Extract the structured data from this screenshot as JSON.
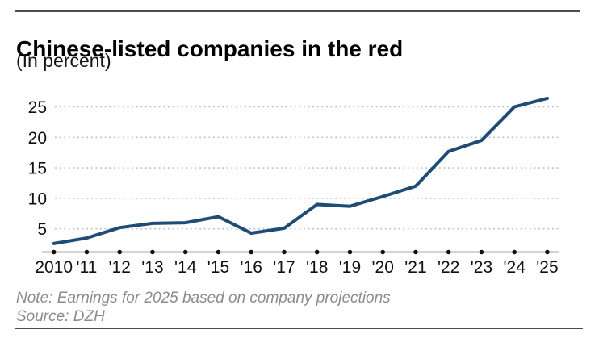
{
  "header": {
    "title": "Chinese-listed companies in the red",
    "subtitle": "(In percent)"
  },
  "chart_data": {
    "type": "line",
    "title": "Chinese-listed companies in the red",
    "ylabel": "(In percent)",
    "xlabel": "",
    "categories": [
      "2010",
      "'11",
      "'12",
      "'13",
      "'14",
      "'15",
      "'16",
      "'17",
      "'18",
      "'19",
      "'20",
      "'21",
      "'22",
      "'23",
      "'24",
      "'25"
    ],
    "values": [
      2.6,
      3.5,
      5.2,
      5.9,
      6.0,
      7.0,
      4.3,
      5.1,
      9.0,
      8.7,
      10.3,
      12.0,
      17.7,
      19.5,
      25.0,
      26.4
    ],
    "yticks": [
      5,
      10,
      15,
      20,
      25
    ],
    "ylim": [
      1,
      28
    ],
    "grid": "dotted-horizontal",
    "legend": "none"
  },
  "footer": {
    "note": "Note: Earnings for 2025 based on company projections",
    "source": "Source: DZH"
  },
  "colors": {
    "line": "#1e4c78",
    "axis": "#a8a8a8",
    "grid": "#bfbfbf",
    "tick_dot": "#111111",
    "rule": "#4d4d4d",
    "footer_text": "#8c8c8c"
  }
}
